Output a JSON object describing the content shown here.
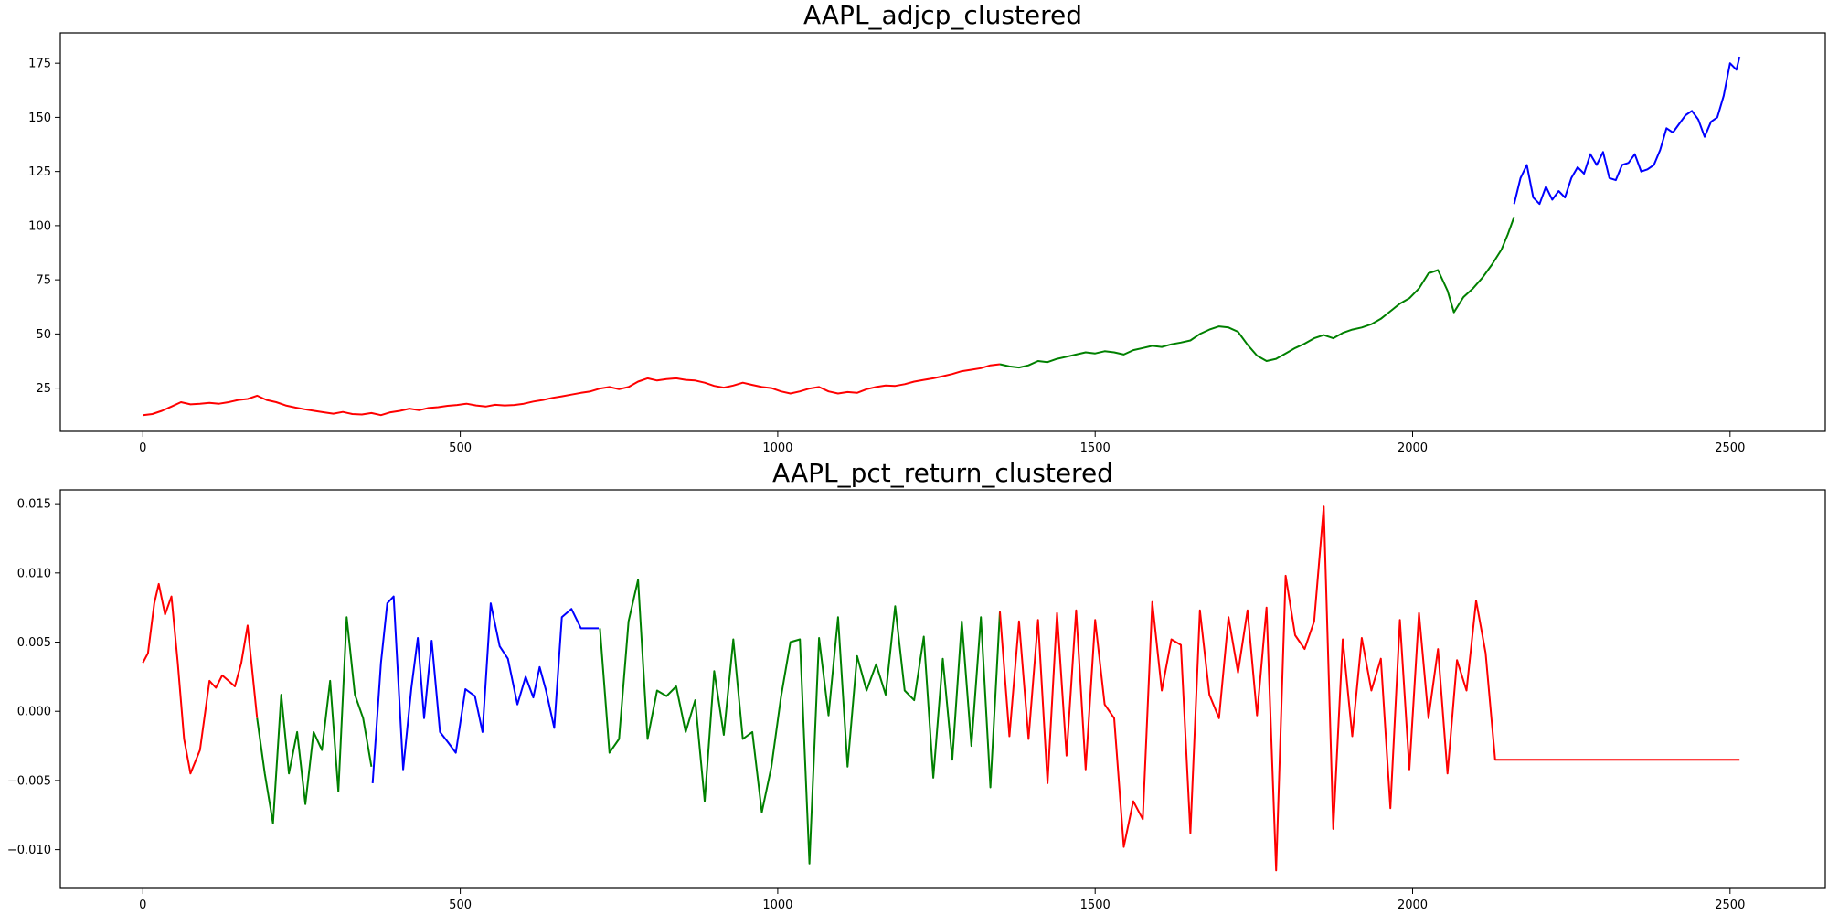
{
  "chart_data": [
    {
      "type": "line",
      "title": "AAPL_adjcp_clustered",
      "xlabel": "",
      "ylabel": "",
      "xlim": [
        -130,
        2650
      ],
      "ylim": [
        5,
        189
      ],
      "xticks": [
        0,
        500,
        1000,
        1500,
        2000,
        2500
      ],
      "yticks": [
        25,
        50,
        75,
        100,
        125,
        150,
        175
      ],
      "ytick_labels": [
        "25",
        "50",
        "75",
        "100",
        "125",
        "150",
        "175"
      ],
      "grid": false,
      "colors": {
        "red": "#ff0000",
        "green": "#008000",
        "blue": "#0000ff"
      },
      "segments": [
        {
          "color": "red",
          "x": [
            0,
            15,
            30,
            45,
            60,
            75,
            90,
            105,
            120,
            135,
            150,
            165,
            180,
            195,
            210,
            225,
            240,
            255,
            270,
            285,
            300,
            315,
            330,
            345,
            360,
            375,
            390,
            405,
            420,
            435,
            450,
            465,
            480,
            495,
            510,
            525,
            540,
            555,
            570,
            585,
            600,
            615,
            630,
            645,
            660,
            675,
            690,
            705,
            720,
            735,
            750,
            765,
            780,
            795,
            810,
            825,
            840,
            855,
            870,
            885,
            900,
            915,
            930,
            945,
            960,
            975,
            990,
            1005,
            1020,
            1035,
            1050,
            1065,
            1080,
            1095,
            1110,
            1125,
            1140,
            1155,
            1170,
            1185,
            1200,
            1215,
            1230,
            1245,
            1260,
            1275,
            1290,
            1305,
            1320,
            1335,
            1350
          ],
          "y": [
            12.5,
            13,
            14.5,
            16.5,
            18.5,
            17.5,
            17.8,
            18.2,
            17.8,
            18.5,
            19.5,
            20,
            21.5,
            19.5,
            18.5,
            17,
            16,
            15.2,
            14.5,
            13.8,
            13.2,
            14,
            13,
            12.8,
            13.5,
            12.5,
            13.8,
            14.5,
            15.5,
            14.8,
            15.8,
            16.2,
            16.8,
            17.2,
            17.8,
            17,
            16.5,
            17.3,
            17,
            17.2,
            17.8,
            18.8,
            19.5,
            20.5,
            21.2,
            22,
            22.8,
            23.5,
            24.8,
            25.5,
            24.5,
            25.5,
            28,
            29.5,
            28.5,
            29.2,
            29.5,
            28.8,
            28.5,
            27.5,
            26,
            25.2,
            26.2,
            27.5,
            26.5,
            25.5,
            25,
            23.5,
            22.5,
            23.5,
            24.8,
            25.5,
            23.5,
            22.5,
            23.2,
            22.8,
            24.5,
            25.5,
            26.2,
            26,
            26.8,
            28,
            28.8,
            29.5,
            30.5,
            31.5,
            32.8,
            33.5,
            34.2,
            35.5,
            36
          ]
        },
        {
          "color": "green",
          "x": [
            1350,
            1365,
            1380,
            1395,
            1410,
            1425,
            1440,
            1455,
            1470,
            1485,
            1500,
            1515,
            1530,
            1545,
            1560,
            1575,
            1590,
            1605,
            1620,
            1635,
            1650,
            1665,
            1680,
            1695,
            1710,
            1725,
            1740,
            1755,
            1770,
            1785,
            1800,
            1815,
            1830,
            1845,
            1860,
            1875,
            1890,
            1905,
            1920,
            1935,
            1950,
            1965,
            1980,
            1995,
            2010,
            2025,
            2040,
            2055,
            2065,
            2080,
            2095,
            2110,
            2125,
            2140,
            2150,
            2160
          ],
          "y": [
            36,
            35,
            34.5,
            35.5,
            37.5,
            37,
            38.5,
            39.5,
            40.5,
            41.5,
            41,
            42,
            41.5,
            40.5,
            42.5,
            43.5,
            44.5,
            44,
            45.2,
            46,
            47,
            50,
            52,
            53.5,
            53,
            51,
            45,
            40,
            37.5,
            38.5,
            41,
            43.5,
            45.5,
            48,
            49.5,
            48,
            50.5,
            52,
            53,
            54.5,
            57,
            60.5,
            64,
            66.5,
            71,
            78,
            79.5,
            70,
            60,
            67,
            71,
            76,
            82,
            89,
            96,
            104
          ]
        },
        {
          "color": "blue",
          "x": [
            2160,
            2170,
            2180,
            2190,
            2200,
            2210,
            2220,
            2230,
            2240,
            2250,
            2260,
            2270,
            2280,
            2290,
            2300,
            2310,
            2320,
            2330,
            2340,
            2350,
            2360,
            2370,
            2380,
            2390,
            2400,
            2410,
            2420,
            2430,
            2440,
            2450,
            2460,
            2470,
            2480,
            2490,
            2500,
            2510,
            2515
          ],
          "y": [
            110,
            122,
            128,
            113,
            110,
            118,
            112,
            116,
            113,
            122,
            127,
            124,
            133,
            128,
            134,
            122,
            121,
            128,
            129,
            133,
            125,
            126,
            128,
            135,
            145,
            143,
            147,
            151,
            153,
            149,
            141,
            148,
            150,
            160,
            175,
            172,
            178
          ]
        }
      ]
    },
    {
      "type": "line",
      "title": "AAPL_pct_return_clustered",
      "xlabel": "",
      "ylabel": "",
      "xlim": [
        -130,
        2650
      ],
      "ylim": [
        -0.0128,
        0.016
      ],
      "xticks": [
        0,
        500,
        1000,
        1500,
        2000,
        2500
      ],
      "yticks": [
        -0.01,
        -0.005,
        0.0,
        0.005,
        0.01,
        0.015
      ],
      "ytick_labels": [
        "−0.010",
        "−0.005",
        "0.000",
        "0.005",
        "0.010",
        "0.015"
      ],
      "grid": false,
      "colors": {
        "red": "#ff0000",
        "green": "#008000",
        "blue": "#0000ff"
      },
      "segments": [
        {
          "color": "red",
          "x": [
            0,
            8,
            18,
            25,
            35,
            45,
            55,
            65,
            75,
            90,
            105,
            115,
            125,
            135,
            145,
            155,
            165,
            180
          ],
          "y": [
            0.0035,
            0.0042,
            0.0078,
            0.0092,
            0.007,
            0.0083,
            0.0035,
            -0.002,
            -0.0045,
            -0.0028,
            0.0022,
            0.0017,
            0.0026,
            0.0022,
            0.0018,
            0.0035,
            0.0062,
            -0.0005
          ]
        },
        {
          "color": "green",
          "x": [
            180,
            192,
            205,
            218,
            230,
            243,
            256,
            269,
            282,
            295,
            308,
            321,
            334,
            347,
            360
          ],
          "y": [
            -0.0005,
            -0.0045,
            -0.0081,
            0.0012,
            -0.0045,
            -0.0015,
            -0.0067,
            -0.0015,
            -0.0028,
            0.0022,
            -0.0058,
            0.0068,
            0.0012,
            -0.0005,
            -0.004
          ]
        },
        {
          "color": "blue",
          "x": [
            362,
            375,
            385,
            395,
            410,
            423,
            433,
            443,
            455,
            468,
            480,
            493,
            508,
            523,
            535,
            548,
            562,
            575,
            590,
            603,
            615,
            625,
            635,
            648,
            660,
            675,
            690,
            705,
            718
          ],
          "y": [
            -0.0052,
            0.0035,
            0.0078,
            0.0083,
            -0.0042,
            0.0017,
            0.0053,
            -0.0005,
            0.0051,
            -0.0015,
            -0.0022,
            -0.003,
            0.0016,
            0.0011,
            -0.0015,
            0.0078,
            0.0047,
            0.0038,
            0.0005,
            0.0025,
            0.001,
            0.0032,
            0.0015,
            -0.0012,
            0.0068,
            0.0074,
            0.006,
            0.006,
            0.006
          ]
        },
        {
          "color": "green",
          "x": [
            720,
            735,
            750,
            765,
            780,
            795,
            810,
            825,
            840,
            855,
            870,
            885,
            900,
            915,
            930,
            945,
            960,
            975,
            990,
            1005,
            1020,
            1035,
            1050,
            1065,
            1080,
            1095,
            1110,
            1125,
            1140,
            1155,
            1170,
            1185,
            1200,
            1215,
            1230,
            1245,
            1260,
            1275,
            1290,
            1305,
            1320,
            1335,
            1350
          ],
          "y": [
            0.006,
            -0.003,
            -0.002,
            0.0065,
            0.0095,
            -0.002,
            0.0015,
            0.0011,
            0.0018,
            -0.0015,
            0.0008,
            -0.0065,
            0.0029,
            -0.0017,
            0.0052,
            -0.002,
            -0.0015,
            -0.0073,
            -0.004,
            0.001,
            0.005,
            0.0052,
            -0.011,
            0.0053,
            -0.0003,
            0.0068,
            -0.004,
            0.004,
            0.0015,
            0.0034,
            0.0012,
            0.0076,
            0.0015,
            0.0008,
            0.0054,
            -0.0048,
            0.0038,
            -0.0035,
            0.0065,
            -0.0025,
            0.0068,
            -0.0055,
            0.0072
          ]
        },
        {
          "color": "red",
          "x": [
            1350,
            1365,
            1380,
            1395,
            1410,
            1425,
            1440,
            1455,
            1470,
            1485,
            1500,
            1515,
            1530,
            1545,
            1560,
            1575,
            1590,
            1605,
            1620,
            1635,
            1650,
            1665,
            1680,
            1695,
            1710,
            1725,
            1740,
            1755,
            1770,
            1785,
            1800,
            1815,
            1830,
            1845,
            1860,
            1875,
            1890,
            1905,
            1920,
            1935,
            1950,
            1965,
            1980,
            1995,
            2010,
            2025,
            2040,
            2055,
            2070,
            2085,
            2100,
            2115,
            2130,
            2145,
            2160,
            2175,
            2190,
            2205,
            2220,
            2235,
            2250,
            2265,
            2280,
            2295,
            2310,
            2325,
            2340,
            2355,
            2370,
            2385,
            2400,
            2415,
            2430,
            2445,
            2460,
            2475,
            2490,
            2500,
            2515
          ],
          "y": [
            0.0072,
            -0.0018,
            0.0065,
            -0.002,
            0.0066,
            -0.0052,
            0.0071,
            -0.0032,
            0.0073,
            -0.0042,
            0.0066,
            0.0005,
            -0.0005,
            -0.0098,
            -0.0065,
            -0.0078,
            0.0079,
            0.0015,
            0.0052,
            0.0048,
            -0.0088,
            0.0073,
            0.0012,
            -0.0005,
            0.0068,
            0.0028,
            0.0073,
            -0.0003,
            0.0075,
            -0.0115,
            0.0098,
            0.0055,
            0.0045,
            0.0065,
            0.0148,
            -0.0085,
            0.0052,
            -0.0018,
            0.0053,
            0.0015,
            0.0038,
            -0.007,
            0.0066,
            -0.0042,
            0.0071,
            -0.0005,
            0.0045,
            -0.0045,
            0.0037,
            0.0015,
            0.008,
            0.0042,
            -0.0035,
            -0.0035,
            -0.0035,
            -0.0035,
            -0.0035,
            -0.0035,
            -0.0035,
            -0.0035,
            -0.0035,
            -0.0035,
            -0.0035,
            -0.0035,
            -0.0035,
            -0.0035,
            -0.0035,
            -0.0035,
            -0.0035,
            -0.0035,
            -0.0035,
            -0.0035,
            -0.0035,
            -0.0035,
            -0.0035,
            -0.0035,
            -0.0035,
            -0.0035,
            -0.0035
          ]
        }
      ]
    }
  ]
}
